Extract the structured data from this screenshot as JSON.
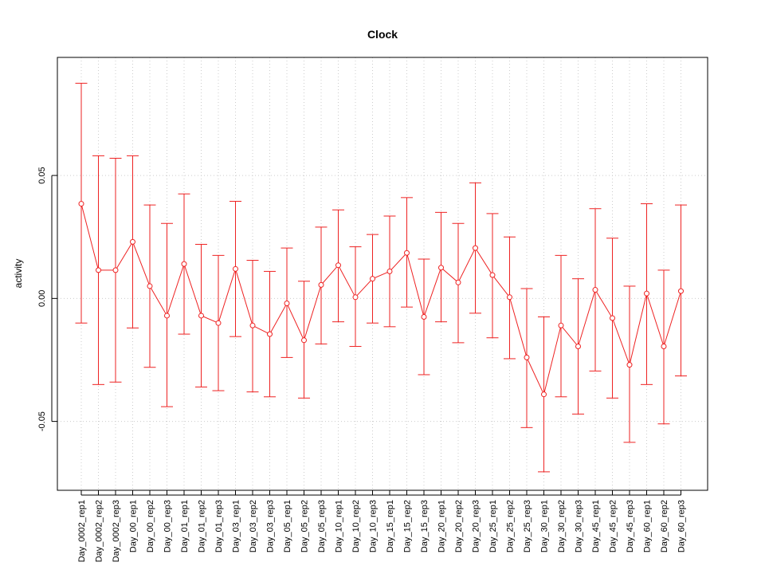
{
  "chart_data": {
    "type": "line",
    "title": "Clock",
    "xlabel": "",
    "ylabel": "activity",
    "ylim": [
      -0.078,
      0.098
    ],
    "yticks": [
      -0.05,
      0.0,
      0.05
    ],
    "ytick_labels": [
      "-0.05",
      "0.00",
      "0.05"
    ],
    "grid": true,
    "categories": [
      "Day_0002_rep1",
      "Day_0002_rep2",
      "Day_0002_rep3",
      "Day_00_rep1",
      "Day_00_rep2",
      "Day_00_rep3",
      "Day_01_rep1",
      "Day_01_rep2",
      "Day_01_rep3",
      "Day_03_rep1",
      "Day_03_rep2",
      "Day_03_rep3",
      "Day_05_rep1",
      "Day_05_rep2",
      "Day_05_rep3",
      "Day_10_rep1",
      "Day_10_rep2",
      "Day_10_rep3",
      "Day_15_rep1",
      "Day_15_rep2",
      "Day_15_rep3",
      "Day_20_rep1",
      "Day_20_rep2",
      "Day_20_rep3",
      "Day_25_rep1",
      "Day_25_rep2",
      "Day_25_rep3",
      "Day_30_rep1",
      "Day_30_rep2",
      "Day_30_rep3",
      "Day_45_rep1",
      "Day_45_rep2",
      "Day_45_rep3",
      "Day_60_rep1",
      "Day_60_rep2",
      "Day_60_rep3"
    ],
    "series": [
      {
        "color": "#ee2222",
        "values": [
          0.0385,
          0.0115,
          0.0115,
          0.023,
          0.005,
          -0.007,
          0.014,
          -0.007,
          -0.01,
          0.012,
          -0.011,
          -0.0145,
          -0.002,
          -0.017,
          0.0055,
          0.0135,
          0.0005,
          0.008,
          0.011,
          0.0185,
          -0.0075,
          0.0125,
          0.0065,
          0.0205,
          0.0095,
          0.0005,
          -0.024,
          -0.039,
          -0.011,
          -0.0195,
          0.0035,
          -0.008,
          -0.027,
          0.002,
          -0.0195,
          0.003
        ],
        "lower": [
          -0.01,
          -0.035,
          -0.034,
          -0.012,
          -0.028,
          -0.044,
          -0.0145,
          -0.036,
          -0.0375,
          -0.0155,
          -0.038,
          -0.04,
          -0.024,
          -0.0405,
          -0.0185,
          -0.0095,
          -0.0195,
          -0.01,
          -0.0115,
          -0.0035,
          -0.031,
          -0.0095,
          -0.018,
          -0.006,
          -0.016,
          -0.0245,
          -0.0525,
          -0.0705,
          -0.04,
          -0.047,
          -0.0295,
          -0.0405,
          -0.0585,
          -0.035,
          -0.051,
          -0.0315
        ],
        "upper": [
          0.0875,
          0.058,
          0.057,
          0.058,
          0.038,
          0.0305,
          0.0425,
          0.022,
          0.0175,
          0.0395,
          0.0155,
          0.011,
          0.0205,
          0.007,
          0.029,
          0.036,
          0.021,
          0.026,
          0.0335,
          0.041,
          0.016,
          0.035,
          0.0305,
          0.047,
          0.0345,
          0.025,
          0.004,
          -0.0075,
          0.0175,
          0.008,
          0.0365,
          0.0245,
          0.005,
          0.0385,
          0.0115,
          0.038
        ]
      }
    ]
  }
}
